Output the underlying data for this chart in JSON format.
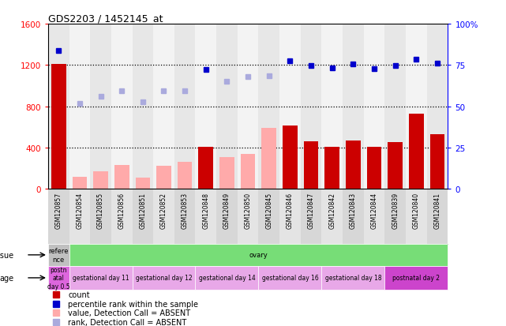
{
  "title": "GDS2203 / 1452145_at",
  "samples": [
    "GSM120857",
    "GSM120854",
    "GSM120855",
    "GSM120856",
    "GSM120851",
    "GSM120852",
    "GSM120853",
    "GSM120848",
    "GSM120849",
    "GSM120850",
    "GSM120845",
    "GSM120846",
    "GSM120847",
    "GSM120842",
    "GSM120843",
    "GSM120844",
    "GSM120839",
    "GSM120840",
    "GSM120841"
  ],
  "count_values": [
    1210,
    0,
    0,
    0,
    0,
    0,
    0,
    410,
    0,
    0,
    0,
    610,
    460,
    410,
    470,
    410,
    450,
    730,
    530
  ],
  "count_absent": [
    0,
    120,
    170,
    230,
    105,
    220,
    260,
    0,
    310,
    340,
    590,
    0,
    0,
    0,
    0,
    0,
    0,
    0,
    0
  ],
  "rank_present": [
    1340,
    0,
    0,
    0,
    0,
    0,
    0,
    1160,
    0,
    0,
    0,
    1240,
    1195,
    1175,
    1210,
    1165,
    1195,
    1255,
    1220
  ],
  "rank_absent_vals": [
    0,
    830,
    895,
    950,
    840,
    950,
    950,
    0,
    1040,
    1085,
    1095,
    0,
    0,
    0,
    0,
    0,
    0,
    0,
    0
  ],
  "ylim_left": [
    0,
    1600
  ],
  "ylim_right": [
    0,
    100
  ],
  "yticks_left": [
    0,
    400,
    800,
    1200,
    1600
  ],
  "yticks_right": [
    0,
    25,
    50,
    75,
    100
  ],
  "ytick_labels_left": [
    "0",
    "400",
    "800",
    "1200",
    "1600"
  ],
  "ytick_labels_right": [
    "0",
    "25",
    "50",
    "75",
    "100%"
  ],
  "hlines": [
    400,
    800,
    1200
  ],
  "tissue_label": "tissue",
  "age_label": "age",
  "tissue_row": [
    {
      "label": "refere\nnce",
      "color": "#c0c0c0",
      "start": 0,
      "end": 1
    },
    {
      "label": "ovary",
      "color": "#77dd77",
      "start": 1,
      "end": 19
    }
  ],
  "age_row": [
    {
      "label": "postn\natal\nday 0.5",
      "color": "#dd66dd",
      "start": 0,
      "end": 1
    },
    {
      "label": "gestational day 11",
      "color": "#e8a8e8",
      "start": 1,
      "end": 4
    },
    {
      "label": "gestational day 12",
      "color": "#e8a8e8",
      "start": 4,
      "end": 7
    },
    {
      "label": "gestational day 14",
      "color": "#e8a8e8",
      "start": 7,
      "end": 10
    },
    {
      "label": "gestational day 16",
      "color": "#e8a8e8",
      "start": 10,
      "end": 13
    },
    {
      "label": "gestational day 18",
      "color": "#e8a8e8",
      "start": 13,
      "end": 16
    },
    {
      "label": "postnatal day 2",
      "color": "#cc44cc",
      "start": 16,
      "end": 19
    }
  ],
  "legend_items": [
    {
      "label": "count",
      "color": "#cc0000"
    },
    {
      "label": "percentile rank within the sample",
      "color": "#0000cc"
    },
    {
      "label": "value, Detection Call = ABSENT",
      "color": "#ffaaaa"
    },
    {
      "label": "rank, Detection Call = ABSENT",
      "color": "#aaaadd"
    }
  ],
  "bar_color_present": "#cc0000",
  "bar_color_absent": "#ffaaaa",
  "dot_color_present": "#0000cc",
  "dot_color_absent": "#aaaadd",
  "col_bg_even": "#d0d0d0",
  "col_bg_odd": "#e8e8e8"
}
